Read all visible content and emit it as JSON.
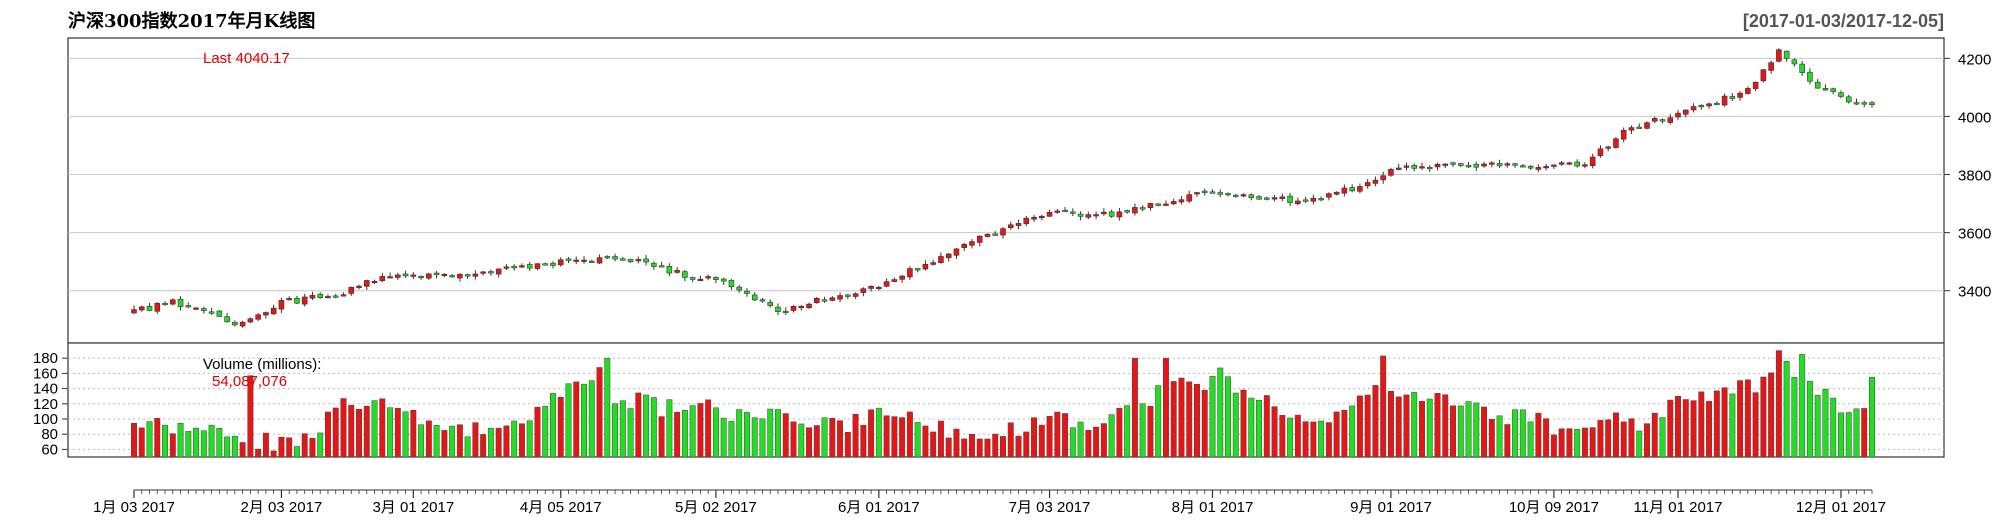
{
  "title": "沪深300指数2017年月K线图",
  "date_range": "[2017-01-03/2017-12-05]",
  "last_label": "Last 4040.17",
  "volume_label": "Volume (millions):",
  "volume_value": "54,087,076",
  "colors": {
    "up": "#e81515",
    "down": "#22dd22",
    "grid": "#c8c8c8",
    "border": "#333333",
    "annotation": "#e00000"
  },
  "chart_data": {
    "type": "candlestick",
    "title": "沪深300指数2017年月K线图",
    "price_axis": {
      "ticks": [
        3400,
        3600,
        3800,
        4000,
        4200
      ],
      "ylim": [
        3220,
        4270
      ]
    },
    "volume_axis": {
      "unit": "millions",
      "ticks": [
        60,
        80,
        100,
        120,
        140,
        160,
        180
      ],
      "ylim": [
        50,
        200
      ]
    },
    "x_labels": [
      "1月 03 2017",
      "2月 03 2017",
      "3月 01 2017",
      "4月 05 2017",
      "5月 02 2017",
      "6月 01 2017",
      "7月 03 2017",
      "8月 01 2017",
      "9月 01 2017",
      "10月 09 2017",
      "11月 01 2017",
      "12月 01 2017"
    ],
    "x_label_index": [
      0,
      19,
      36,
      55,
      75,
      96,
      118,
      139,
      162,
      183,
      199,
      220
    ],
    "n": 225,
    "price_anchors": [
      [
        0,
        3330
      ],
      [
        5,
        3362
      ],
      [
        10,
        3330
      ],
      [
        13,
        3285
      ],
      [
        19,
        3360
      ],
      [
        26,
        3385
      ],
      [
        31,
        3440
      ],
      [
        36,
        3455
      ],
      [
        45,
        3460
      ],
      [
        55,
        3500
      ],
      [
        64,
        3510
      ],
      [
        70,
        3460
      ],
      [
        75,
        3435
      ],
      [
        83,
        3330
      ],
      [
        96,
        3420
      ],
      [
        103,
        3500
      ],
      [
        110,
        3590
      ],
      [
        118,
        3670
      ],
      [
        125,
        3660
      ],
      [
        139,
        3740
      ],
      [
        149,
        3710
      ],
      [
        152,
        3710
      ],
      [
        161,
        3785
      ],
      [
        163,
        3830
      ],
      [
        172,
        3835
      ],
      [
        183,
        3830
      ],
      [
        187,
        3830
      ],
      [
        192,
        3950
      ],
      [
        199,
        4010
      ],
      [
        208,
        4090
      ],
      [
        212,
        4230
      ],
      [
        217,
        4090
      ],
      [
        225,
        4030
      ]
    ],
    "volume_anchors": [
      [
        0,
        92
      ],
      [
        4,
        90
      ],
      [
        8,
        88
      ],
      [
        12,
        80
      ],
      [
        18,
        68
      ],
      [
        22,
        75
      ],
      [
        27,
        115
      ],
      [
        32,
        120
      ],
      [
        36,
        100
      ],
      [
        40,
        90
      ],
      [
        46,
        83
      ],
      [
        52,
        115
      ],
      [
        57,
        140
      ],
      [
        60,
        170
      ],
      [
        62,
        130
      ],
      [
        68,
        115
      ],
      [
        72,
        120
      ],
      [
        77,
        105
      ],
      [
        84,
        100
      ],
      [
        92,
        90
      ],
      [
        96,
        115
      ],
      [
        102,
        90
      ],
      [
        110,
        82
      ],
      [
        114,
        85
      ],
      [
        118,
        105
      ],
      [
        124,
        95
      ],
      [
        130,
        120
      ],
      [
        134,
        150
      ],
      [
        138,
        140
      ],
      [
        140,
        160
      ],
      [
        145,
        125
      ],
      [
        150,
        105
      ],
      [
        155,
        100
      ],
      [
        160,
        140
      ],
      [
        163,
        120
      ],
      [
        168,
        138
      ],
      [
        173,
        110
      ],
      [
        180,
        100
      ],
      [
        185,
        85
      ],
      [
        190,
        100
      ],
      [
        195,
        95
      ],
      [
        199,
        125
      ],
      [
        205,
        135
      ],
      [
        210,
        145
      ],
      [
        213,
        175
      ],
      [
        216,
        150
      ],
      [
        220,
        110
      ],
      [
        224,
        105
      ]
    ],
    "volume_spikes": [
      [
        15,
        157
      ],
      [
        61,
        180
      ],
      [
        129,
        180
      ],
      [
        133,
        180
      ],
      [
        161,
        183
      ],
      [
        212,
        190
      ],
      [
        215,
        185
      ],
      [
        224,
        155
      ]
    ],
    "last_price": 4040.17,
    "last_volume": 54087076
  }
}
